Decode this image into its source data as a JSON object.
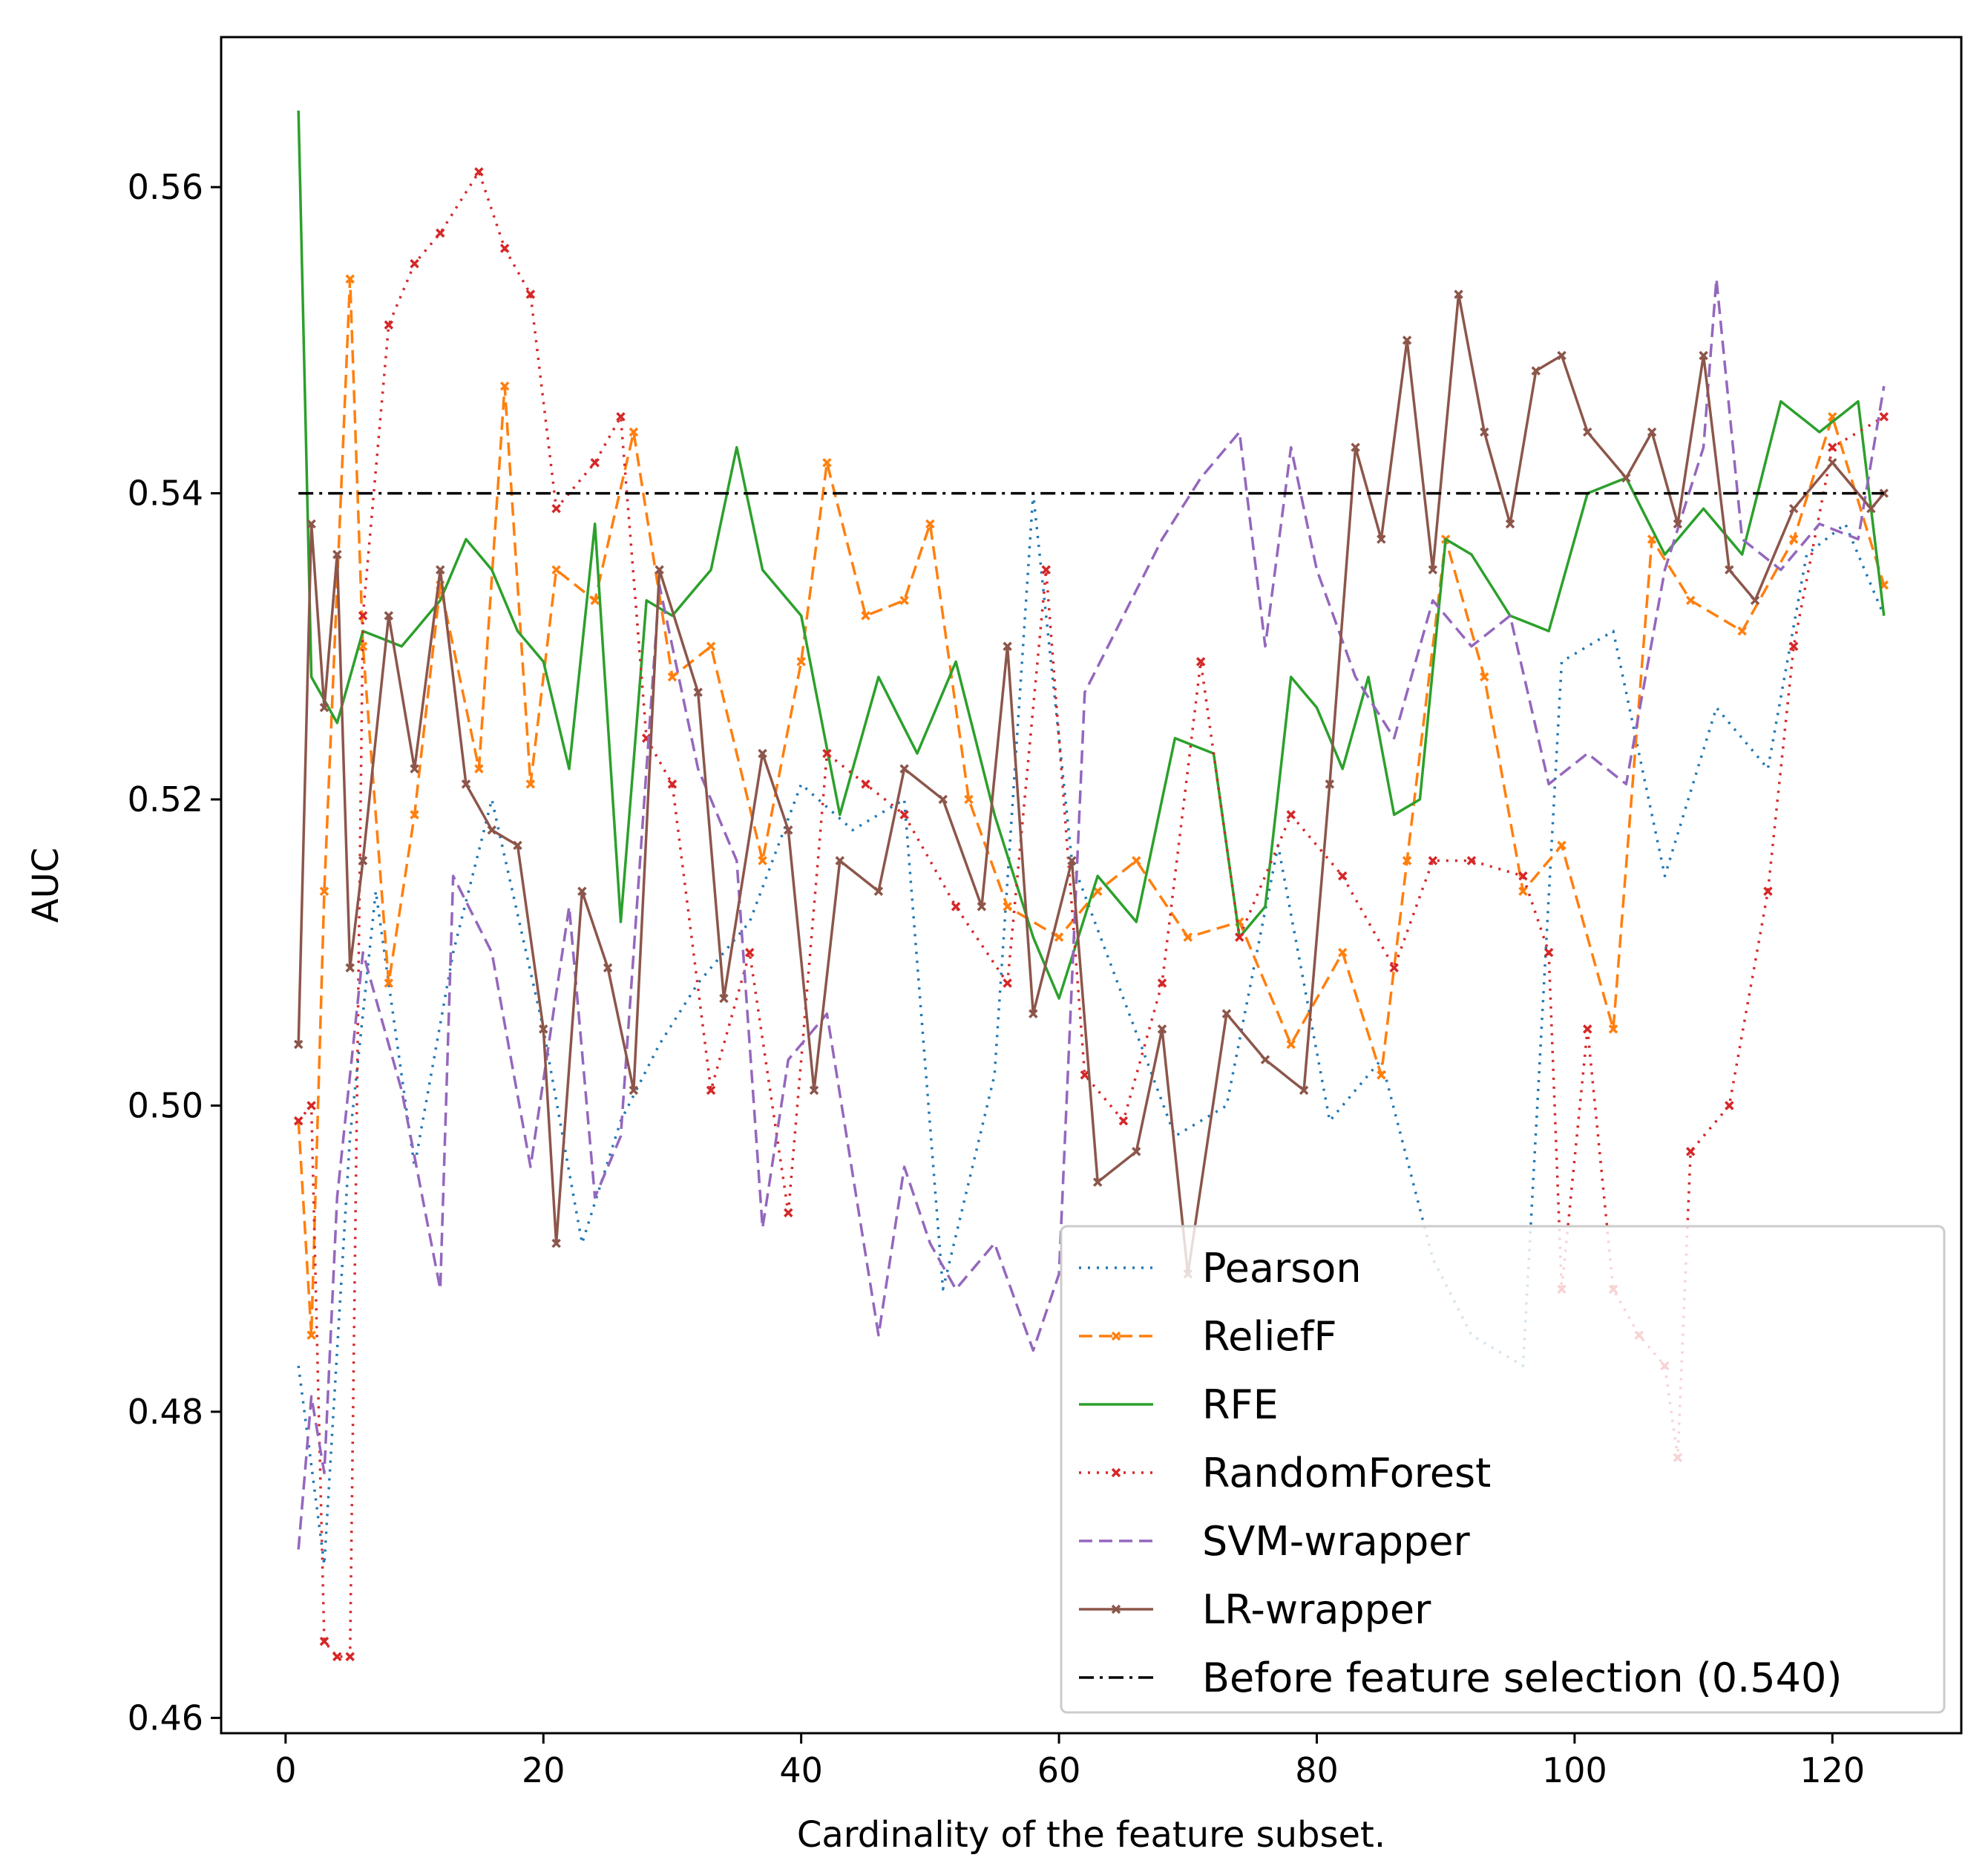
{
  "chart_data": {
    "type": "line",
    "title": "",
    "xlabel": "Cardinality of the feature subset.",
    "ylabel": "AUC",
    "xlim": [
      -5,
      130
    ],
    "ylim": [
      0.459,
      0.5698
    ],
    "xticks": [
      0,
      20,
      40,
      60,
      80,
      100,
      120
    ],
    "yticks": [
      0.46,
      0.48,
      0.5,
      0.52,
      0.54,
      0.56
    ],
    "ytick_labels": [
      "0.46",
      "0.48",
      "0.50",
      "0.52",
      "0.54",
      "0.56"
    ],
    "grid": false,
    "legend_position": "lower-right",
    "series": [
      {
        "name": "Pearson",
        "color": "#1f77b4",
        "linestyle": "dotted",
        "marker": "none",
        "anchors_x": [
          1,
          3,
          5,
          7,
          10,
          13,
          16,
          20,
          23,
          26,
          29,
          32,
          36,
          40,
          44,
          48,
          51,
          55,
          58,
          61,
          65,
          69,
          73,
          77,
          81,
          85,
          89,
          92,
          96,
          99,
          103,
          107,
          111,
          115,
          118,
          121,
          124
        ],
        "anchors_y": [
          0.483,
          0.47,
          0.498,
          0.514,
          0.496,
          0.51,
          0.52,
          0.505,
          0.491,
          0.499,
          0.504,
          0.508,
          0.512,
          0.521,
          0.518,
          0.52,
          0.488,
          0.502,
          0.54,
          0.516,
          0.507,
          0.498,
          0.5,
          0.517,
          0.499,
          0.503,
          0.49,
          0.485,
          0.483,
          0.529,
          0.531,
          0.515,
          0.526,
          0.522,
          0.536,
          0.538,
          0.532
        ]
      },
      {
        "name": "ReliefF",
        "color": "#ff7f0e",
        "linestyle": "dashed",
        "marker": "x",
        "anchors_x": [
          1,
          2,
          3,
          5,
          6,
          8,
          10,
          12,
          15,
          17,
          19,
          21,
          24,
          27,
          30,
          33,
          37,
          40,
          42,
          45,
          48,
          50,
          53,
          56,
          60,
          63,
          66,
          70,
          74,
          78,
          82,
          85,
          87,
          90,
          93,
          96,
          99,
          103,
          106,
          109,
          113,
          117,
          120,
          124
        ],
        "anchors_y": [
          0.499,
          0.485,
          0.514,
          0.554,
          0.53,
          0.508,
          0.519,
          0.534,
          0.522,
          0.547,
          0.521,
          0.535,
          0.533,
          0.544,
          0.528,
          0.53,
          0.516,
          0.529,
          0.542,
          0.532,
          0.533,
          0.538,
          0.52,
          0.513,
          0.511,
          0.514,
          0.516,
          0.511,
          0.512,
          0.504,
          0.51,
          0.502,
          0.516,
          0.537,
          0.528,
          0.514,
          0.517,
          0.505,
          0.537,
          0.533,
          0.531,
          0.537,
          0.545,
          0.534
        ]
      },
      {
        "name": "RFE",
        "color": "#2ca02c",
        "linestyle": "solid",
        "marker": "none",
        "anchors_x": [
          1,
          2,
          4,
          6,
          9,
          12,
          14,
          16,
          18,
          20,
          22,
          24,
          26,
          28,
          30,
          33,
          35,
          37,
          40,
          43,
          46,
          49,
          52,
          55,
          58,
          60,
          63,
          66,
          69,
          72,
          74,
          76,
          78,
          80,
          82,
          84,
          86,
          88,
          90,
          92,
          95,
          98,
          101,
          104,
          107,
          110,
          113,
          116,
          119,
          122,
          124
        ],
        "anchors_y": [
          0.565,
          0.528,
          0.525,
          0.531,
          0.53,
          0.533,
          0.537,
          0.535,
          0.531,
          0.529,
          0.522,
          0.538,
          0.512,
          0.533,
          0.532,
          0.535,
          0.543,
          0.535,
          0.532,
          0.519,
          0.528,
          0.523,
          0.529,
          0.519,
          0.511,
          0.507,
          0.515,
          0.512,
          0.524,
          0.523,
          0.511,
          0.513,
          0.528,
          0.526,
          0.522,
          0.528,
          0.519,
          0.52,
          0.537,
          0.536,
          0.532,
          0.531,
          0.54,
          0.541,
          0.536,
          0.539,
          0.536,
          0.546,
          0.544,
          0.546,
          0.532
        ]
      },
      {
        "name": "RandomForest",
        "color": "#d62728",
        "linestyle": "dotted",
        "marker": "x",
        "anchors_x": [
          1,
          2,
          3,
          4,
          5,
          6,
          8,
          10,
          12,
          15,
          17,
          19,
          21,
          24,
          26,
          28,
          30,
          33,
          36,
          39,
          42,
          45,
          48,
          52,
          56,
          59,
          62,
          65,
          68,
          71,
          74,
          78,
          82,
          86,
          89,
          92,
          96,
          98,
          99,
          101,
          103,
          105,
          107,
          108,
          109,
          112,
          115,
          117,
          120,
          124
        ],
        "anchors_y": [
          0.499,
          0.5,
          0.465,
          0.464,
          0.464,
          0.532,
          0.551,
          0.555,
          0.557,
          0.561,
          0.556,
          0.553,
          0.539,
          0.542,
          0.545,
          0.524,
          0.521,
          0.501,
          0.51,
          0.493,
          0.523,
          0.521,
          0.519,
          0.513,
          0.508,
          0.535,
          0.502,
          0.499,
          0.508,
          0.529,
          0.511,
          0.519,
          0.515,
          0.509,
          0.516,
          0.516,
          0.515,
          0.51,
          0.488,
          0.505,
          0.488,
          0.485,
          0.483,
          0.477,
          0.497,
          0.5,
          0.514,
          0.53,
          0.543,
          0.545
        ]
      },
      {
        "name": "SVM-wrapper",
        "color": "#9467bd",
        "linestyle": "dashed",
        "marker": "none",
        "anchors_x": [
          1,
          2,
          3,
          4,
          6,
          9,
          12,
          13,
          16,
          19,
          22,
          24,
          26,
          29,
          32,
          35,
          37,
          39,
          42,
          46,
          48,
          50,
          52,
          55,
          58,
          60,
          62,
          65,
          68,
          71,
          74,
          76,
          78,
          80,
          83,
          86,
          89,
          92,
          95,
          98,
          101,
          104,
          107,
          110,
          111,
          113,
          116,
          119,
          122,
          124
        ],
        "anchors_y": [
          0.471,
          0.481,
          0.476,
          0.494,
          0.51,
          0.501,
          0.488,
          0.515,
          0.51,
          0.496,
          0.513,
          0.494,
          0.498,
          0.534,
          0.522,
          0.516,
          0.492,
          0.503,
          0.506,
          0.485,
          0.496,
          0.491,
          0.488,
          0.491,
          0.484,
          0.489,
          0.527,
          0.532,
          0.537,
          0.541,
          0.544,
          0.53,
          0.543,
          0.535,
          0.528,
          0.524,
          0.533,
          0.53,
          0.532,
          0.521,
          0.523,
          0.521,
          0.535,
          0.543,
          0.554,
          0.537,
          0.535,
          0.538,
          0.537,
          0.547
        ]
      },
      {
        "name": "LR-wrapper",
        "color": "#8c564b",
        "linestyle": "solid",
        "marker": "x",
        "anchors_x": [
          1,
          2,
          3,
          4,
          5,
          6,
          8,
          10,
          12,
          14,
          16,
          18,
          20,
          21,
          23,
          25,
          27,
          29,
          32,
          34,
          37,
          39,
          41,
          43,
          46,
          48,
          51,
          54,
          56,
          58,
          61,
          63,
          66,
          68,
          70,
          73,
          76,
          79,
          81,
          83,
          85,
          87,
          89,
          91,
          93,
          95,
          97,
          99,
          101,
          104,
          106,
          108,
          110,
          112,
          114,
          117,
          120,
          123,
          124
        ],
        "anchors_y": [
          0.504,
          0.538,
          0.526,
          0.536,
          0.509,
          0.516,
          0.532,
          0.522,
          0.535,
          0.521,
          0.518,
          0.517,
          0.505,
          0.491,
          0.514,
          0.509,
          0.501,
          0.535,
          0.527,
          0.507,
          0.523,
          0.518,
          0.501,
          0.516,
          0.514,
          0.522,
          0.52,
          0.513,
          0.53,
          0.506,
          0.516,
          0.495,
          0.497,
          0.505,
          0.489,
          0.506,
          0.503,
          0.501,
          0.521,
          0.543,
          0.537,
          0.55,
          0.535,
          0.553,
          0.544,
          0.538,
          0.548,
          0.549,
          0.544,
          0.541,
          0.544,
          0.538,
          0.549,
          0.535,
          0.533,
          0.539,
          0.542,
          0.539,
          0.54
        ]
      },
      {
        "name": "Before feature selection (0.540)",
        "color": "#000000",
        "linestyle": "dashdot",
        "marker": "none",
        "anchors_x": [
          1,
          124
        ],
        "anchors_y": [
          0.54,
          0.54
        ]
      }
    ]
  }
}
